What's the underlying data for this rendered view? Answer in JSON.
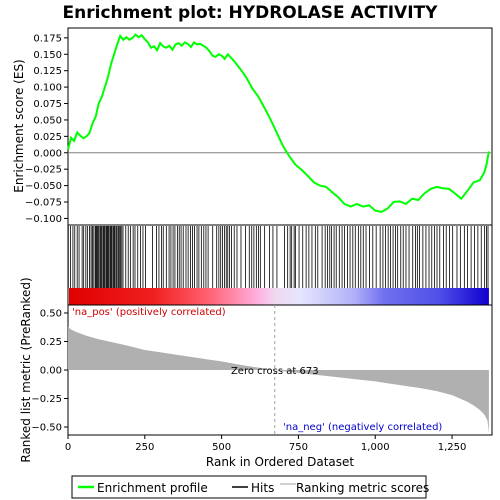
{
  "chart_data": {
    "type": "line",
    "title": "Enrichment plot: HYDROLASE ACTIVITY",
    "xlabel": "Rank in Ordered Dataset",
    "ylabel_top": "Enrichment score (ES)",
    "ylabel_bottom": "Ranked list metric (PreRanked)",
    "xlim": [
      0,
      1380
    ],
    "x_ticks": [
      0,
      250,
      500,
      750,
      1000,
      1250
    ],
    "x_tick_labels": [
      "0",
      "250",
      "500",
      "750",
      "1,000",
      "1,250"
    ],
    "es_ylim": [
      -0.11,
      0.19
    ],
    "es_ticks": [
      -0.1,
      -0.075,
      -0.05,
      -0.025,
      0.0,
      0.025,
      0.05,
      0.075,
      0.1,
      0.125,
      0.15,
      0.175
    ],
    "es_tick_labels": [
      "−0.100",
      "−0.075",
      "−0.050",
      "−0.025",
      "0.000",
      "0.025",
      "0.050",
      "0.075",
      "0.100",
      "0.125",
      "0.150",
      "0.175"
    ],
    "metric_ylim": [
      -0.57,
      0.57
    ],
    "metric_ticks": [
      -0.5,
      -0.25,
      0.0,
      0.25,
      0.5
    ],
    "metric_tick_labels": [
      "−0.50",
      "−0.25",
      "0.00",
      "0.25",
      "0.50"
    ],
    "series": [
      {
        "name": "Enrichment profile",
        "color": "#00ff00",
        "x": [
          0,
          10,
          20,
          30,
          40,
          50,
          60,
          70,
          80,
          90,
          100,
          110,
          120,
          130,
          140,
          150,
          160,
          170,
          180,
          190,
          200,
          210,
          220,
          230,
          240,
          250,
          260,
          270,
          280,
          290,
          300,
          310,
          320,
          330,
          340,
          350,
          360,
          370,
          380,
          390,
          400,
          410,
          420,
          430,
          440,
          450,
          460,
          470,
          480,
          490,
          500,
          510,
          520,
          540,
          560,
          580,
          600,
          620,
          640,
          660,
          680,
          700,
          720,
          740,
          760,
          780,
          800,
          820,
          840,
          860,
          880,
          900,
          920,
          940,
          960,
          980,
          1000,
          1020,
          1040,
          1060,
          1080,
          1100,
          1120,
          1140,
          1160,
          1180,
          1200,
          1220,
          1240,
          1260,
          1280,
          1300,
          1320,
          1340,
          1355,
          1362,
          1366,
          1370
        ],
        "y": [
          0.005,
          0.023,
          0.018,
          0.031,
          0.026,
          0.022,
          0.025,
          0.03,
          0.045,
          0.055,
          0.075,
          0.085,
          0.1,
          0.115,
          0.135,
          0.15,
          0.165,
          0.178,
          0.172,
          0.176,
          0.172,
          0.175,
          0.18,
          0.176,
          0.179,
          0.173,
          0.168,
          0.16,
          0.162,
          0.156,
          0.167,
          0.162,
          0.16,
          0.163,
          0.157,
          0.165,
          0.167,
          0.163,
          0.168,
          0.166,
          0.161,
          0.168,
          0.165,
          0.166,
          0.163,
          0.16,
          0.155,
          0.148,
          0.146,
          0.15,
          0.148,
          0.143,
          0.15,
          0.14,
          0.128,
          0.115,
          0.098,
          0.085,
          0.068,
          0.05,
          0.03,
          0.01,
          -0.005,
          -0.018,
          -0.026,
          -0.035,
          -0.045,
          -0.05,
          -0.052,
          -0.06,
          -0.068,
          -0.078,
          -0.082,
          -0.078,
          -0.082,
          -0.08,
          -0.088,
          -0.09,
          -0.085,
          -0.075,
          -0.074,
          -0.078,
          -0.07,
          -0.072,
          -0.062,
          -0.055,
          -0.052,
          -0.054,
          -0.055,
          -0.062,
          -0.07,
          -0.058,
          -0.045,
          -0.042,
          -0.03,
          -0.018,
          -0.008,
          0.002
        ]
      },
      {
        "name": "Hits",
        "color": "#000000"
      },
      {
        "name": "Ranking metric scores",
        "color": "#c0c0c0",
        "x": [
          0,
          10,
          30,
          60,
          100,
          150,
          200,
          250,
          300,
          350,
          400,
          450,
          500,
          550,
          600,
          650,
          673,
          700,
          750,
          800,
          850,
          900,
          950,
          1000,
          1050,
          1100,
          1150,
          1200,
          1250,
          1280,
          1300,
          1320,
          1340,
          1355,
          1365,
          1370
        ],
        "y": [
          0.38,
          0.355,
          0.33,
          0.3,
          0.27,
          0.24,
          0.21,
          0.175,
          0.155,
          0.135,
          0.115,
          0.095,
          0.075,
          0.05,
          0.028,
          0.01,
          0.0,
          -0.01,
          -0.025,
          -0.04,
          -0.055,
          -0.07,
          -0.085,
          -0.1,
          -0.12,
          -0.14,
          -0.16,
          -0.185,
          -0.22,
          -0.255,
          -0.28,
          -0.31,
          -0.35,
          -0.39,
          -0.44,
          -0.55
        ]
      }
    ],
    "hits": [
      1,
      8,
      16,
      22,
      30,
      36,
      46,
      51,
      58,
      63,
      70,
      75,
      79,
      82,
      88,
      91,
      94,
      97,
      100,
      104,
      107,
      110,
      114,
      117,
      120,
      124,
      127,
      130,
      133,
      137,
      140,
      143,
      147,
      150,
      153,
      157,
      160,
      164,
      167,
      171,
      175,
      179,
      188,
      196,
      203,
      212,
      218,
      227,
      236,
      244,
      252,
      275,
      288,
      296,
      304,
      310,
      320,
      329,
      335,
      342,
      348,
      356,
      362,
      368,
      375,
      384,
      391,
      399,
      405,
      412,
      420,
      426,
      434,
      442,
      449,
      456,
      471,
      484,
      491,
      497,
      503,
      509,
      515,
      520,
      526,
      532,
      541,
      550,
      563,
      578,
      590,
      598,
      605,
      613,
      620,
      626,
      640,
      656,
      667,
      680,
      705,
      715,
      723,
      728,
      736,
      740,
      752,
      764,
      775,
      784,
      794,
      805,
      813,
      827,
      837,
      845,
      852,
      858,
      866,
      873,
      883,
      892,
      900,
      910,
      918,
      927,
      935,
      945,
      953,
      961,
      970,
      981,
      992,
      1003,
      1016,
      1025,
      1033,
      1042,
      1050,
      1058,
      1066,
      1073,
      1083,
      1091,
      1100,
      1110,
      1122,
      1131,
      1137,
      1144,
      1155,
      1165,
      1175,
      1184,
      1193,
      1201,
      1210,
      1222,
      1231,
      1242,
      1252,
      1266,
      1277,
      1290,
      1300,
      1312,
      1323,
      1334,
      1345,
      1356,
      1362,
      1367
    ],
    "color_bar": {
      "stops": [
        {
          "pos": 0.0,
          "color": "#e00000"
        },
        {
          "pos": 0.2,
          "color": "#f02020"
        },
        {
          "pos": 0.33,
          "color": "#ff6070"
        },
        {
          "pos": 0.45,
          "color": "#ffb0e0"
        },
        {
          "pos": 0.49,
          "color": "#f0d8f0"
        },
        {
          "pos": 0.55,
          "color": "#e6e6ff"
        },
        {
          "pos": 0.68,
          "color": "#b0b0f8"
        },
        {
          "pos": 0.75,
          "color": "#7070f0"
        },
        {
          "pos": 0.88,
          "color": "#5050e8"
        },
        {
          "pos": 1.0,
          "color": "#1000d0"
        }
      ]
    },
    "annotations": {
      "pos_label": "'na_pos' (positively correlated)",
      "pos_color": "#cc0000",
      "neg_label": "'na_neg' (negatively correlated)",
      "neg_color": "#0000cc",
      "zero_cross_text": "Zero cross at 673",
      "zero_cross_x": 673
    },
    "legend": {
      "placement": "bottom",
      "items": [
        "Enrichment profile",
        "Hits",
        "Ranking metric scores"
      ]
    },
    "grid": false
  }
}
